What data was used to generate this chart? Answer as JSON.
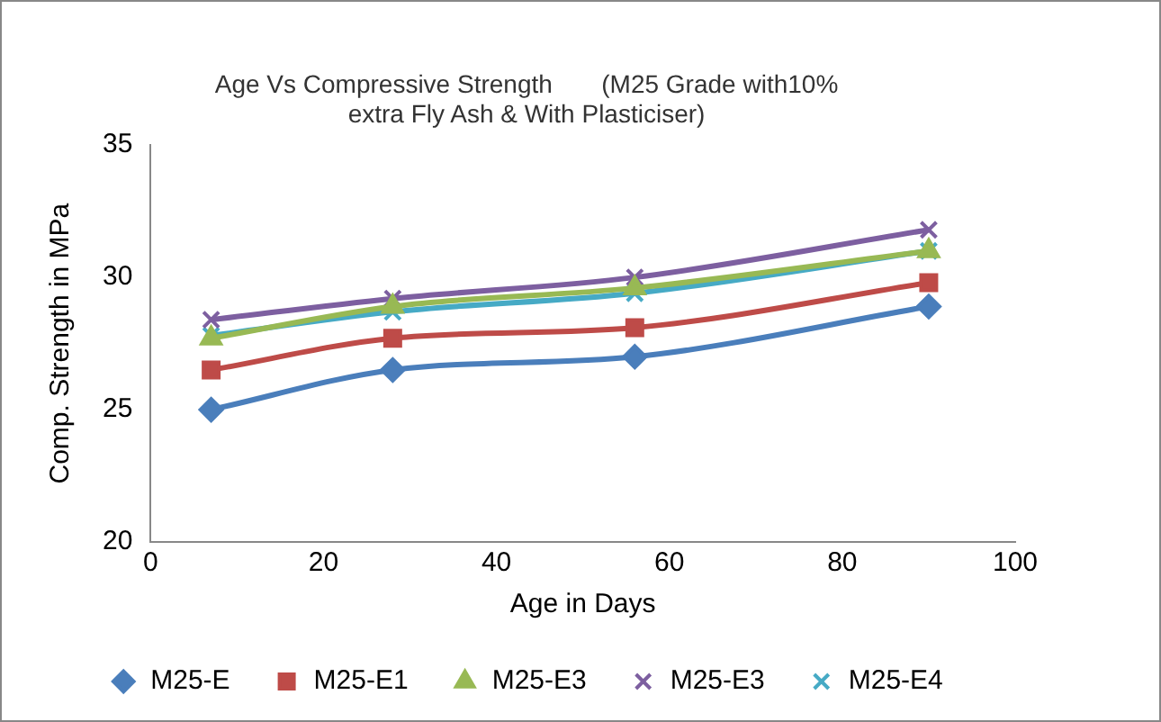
{
  "chart_data": {
    "type": "line",
    "title": "Age Vs Compressive Strength       (M25 Grade with10%\nextra Fly Ash & With Plasticiser)",
    "xlabel": "Age in Days",
    "ylabel": "Comp. Strength in MPa",
    "x": [
      7,
      28,
      56,
      90
    ],
    "series": [
      {
        "name": "M25-E",
        "color": "#4a7ebb",
        "marker": "diamond",
        "values": [
          25.0,
          26.5,
          27.0,
          28.9
        ]
      },
      {
        "name": "M25-E1",
        "color": "#be4b48",
        "marker": "square",
        "values": [
          26.5,
          27.7,
          28.1,
          29.8
        ]
      },
      {
        "name": "M25-E3",
        "color": "#98b954",
        "marker": "triangle",
        "values": [
          27.7,
          28.9,
          29.6,
          31.0
        ]
      },
      {
        "name": "M25-E3",
        "color": "#7d5fa0",
        "marker": "cross",
        "values": [
          28.4,
          29.2,
          30.0,
          31.8
        ]
      },
      {
        "name": "M25-E4",
        "color": "#46aac5",
        "marker": "cross",
        "values": [
          27.8,
          28.7,
          29.4,
          31.0
        ]
      }
    ],
    "xlim": [
      0,
      100
    ],
    "xticks": [
      0,
      20,
      40,
      60,
      80,
      100
    ],
    "ylim": [
      20,
      35
    ],
    "yticks": [
      20,
      25,
      30,
      35
    ],
    "grid": false,
    "legend": "bottom"
  }
}
